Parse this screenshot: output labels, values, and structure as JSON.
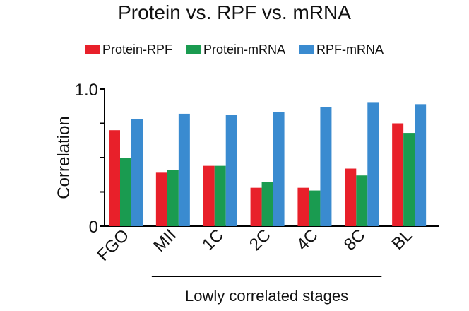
{
  "chart_data": {
    "type": "bar",
    "title": "Protein vs. RPF vs. mRNA",
    "ylabel": "Correlation",
    "xlabel": "",
    "ylim": [
      0,
      1.0
    ],
    "y_ticks": [
      {
        "value": 0,
        "label": "0"
      },
      {
        "value": 0.25,
        "label": ""
      },
      {
        "value": 0.5,
        "label": ""
      },
      {
        "value": 0.75,
        "label": ""
      },
      {
        "value": 1.0,
        "label": "1.0"
      }
    ],
    "categories": [
      "FGO",
      "MII",
      "1C",
      "2C",
      "4C",
      "8C",
      "BL"
    ],
    "series": [
      {
        "name": "Protein-RPF",
        "color": "#e8202a",
        "values": [
          0.7,
          0.39,
          0.44,
          0.28,
          0.28,
          0.42,
          0.75
        ]
      },
      {
        "name": "Protein-mRNA",
        "color": "#1a9b50",
        "values": [
          0.5,
          0.41,
          0.44,
          0.32,
          0.26,
          0.37,
          0.68
        ]
      },
      {
        "name": "RPF-mRNA",
        "color": "#3a8bd0",
        "values": [
          0.78,
          0.82,
          0.81,
          0.83,
          0.87,
          0.9,
          0.89
        ]
      }
    ],
    "legend_position": "top",
    "grid": false,
    "annotation": {
      "text": "Lowly correlated stages",
      "from_category": "MII",
      "to_category": "8C"
    }
  }
}
